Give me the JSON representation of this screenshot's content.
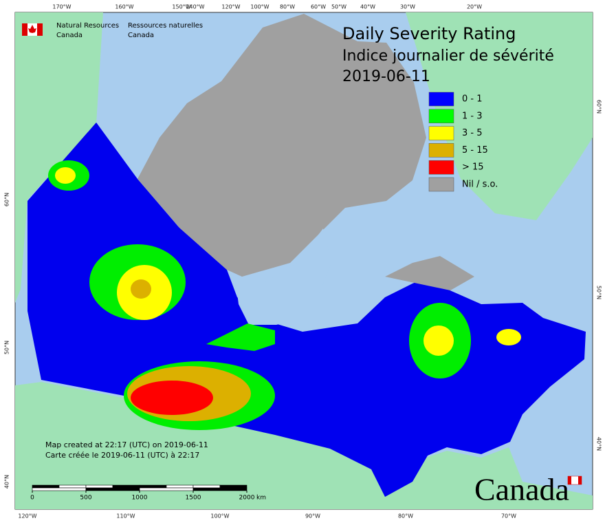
{
  "header": {
    "agency_en": [
      "Natural Resources",
      "Canada"
    ],
    "agency_fr": [
      "Ressources naturelles",
      "Canada"
    ]
  },
  "title": [
    "Daily Severity Rating",
    "Indice journalier de sévérité",
    "2019-06-11"
  ],
  "legend": [
    {
      "label": "0 - 1",
      "color": "#0000ff"
    },
    {
      "label": "1 - 3",
      "color": "#00ff00"
    },
    {
      "label": "3 - 5",
      "color": "#ffff00"
    },
    {
      "label": "5 - 15",
      "color": "#dcb000"
    },
    {
      "label": "> 15",
      "color": "#ff0000"
    },
    {
      "label": "Nil / s.o.",
      "color": "#a0a0a0"
    }
  ],
  "graticule": {
    "top": [
      "170°W",
      "160°W",
      "150°W",
      "140°W",
      "120°W",
      "100°W",
      "80°W",
      "60°W",
      "50°W",
      "40°W",
      "30°W",
      "20°W"
    ],
    "bottom": [
      "120°W",
      "110°W",
      "100°W",
      "90°W",
      "80°W",
      "70°W"
    ],
    "left": [
      "60°N",
      "50°N",
      "40°N"
    ],
    "right": [
      "60°N",
      "50°N",
      "40°N"
    ]
  },
  "credits": [
    "Map created at 22:17 (UTC) on 2019-06-11",
    "Carte créée le 2019-06-11 (UTC) à 22:17"
  ],
  "scale": {
    "ticks": [
      0,
      500,
      1000,
      1500,
      2000
    ],
    "unit": "km"
  },
  "wordmark": "Canada"
}
